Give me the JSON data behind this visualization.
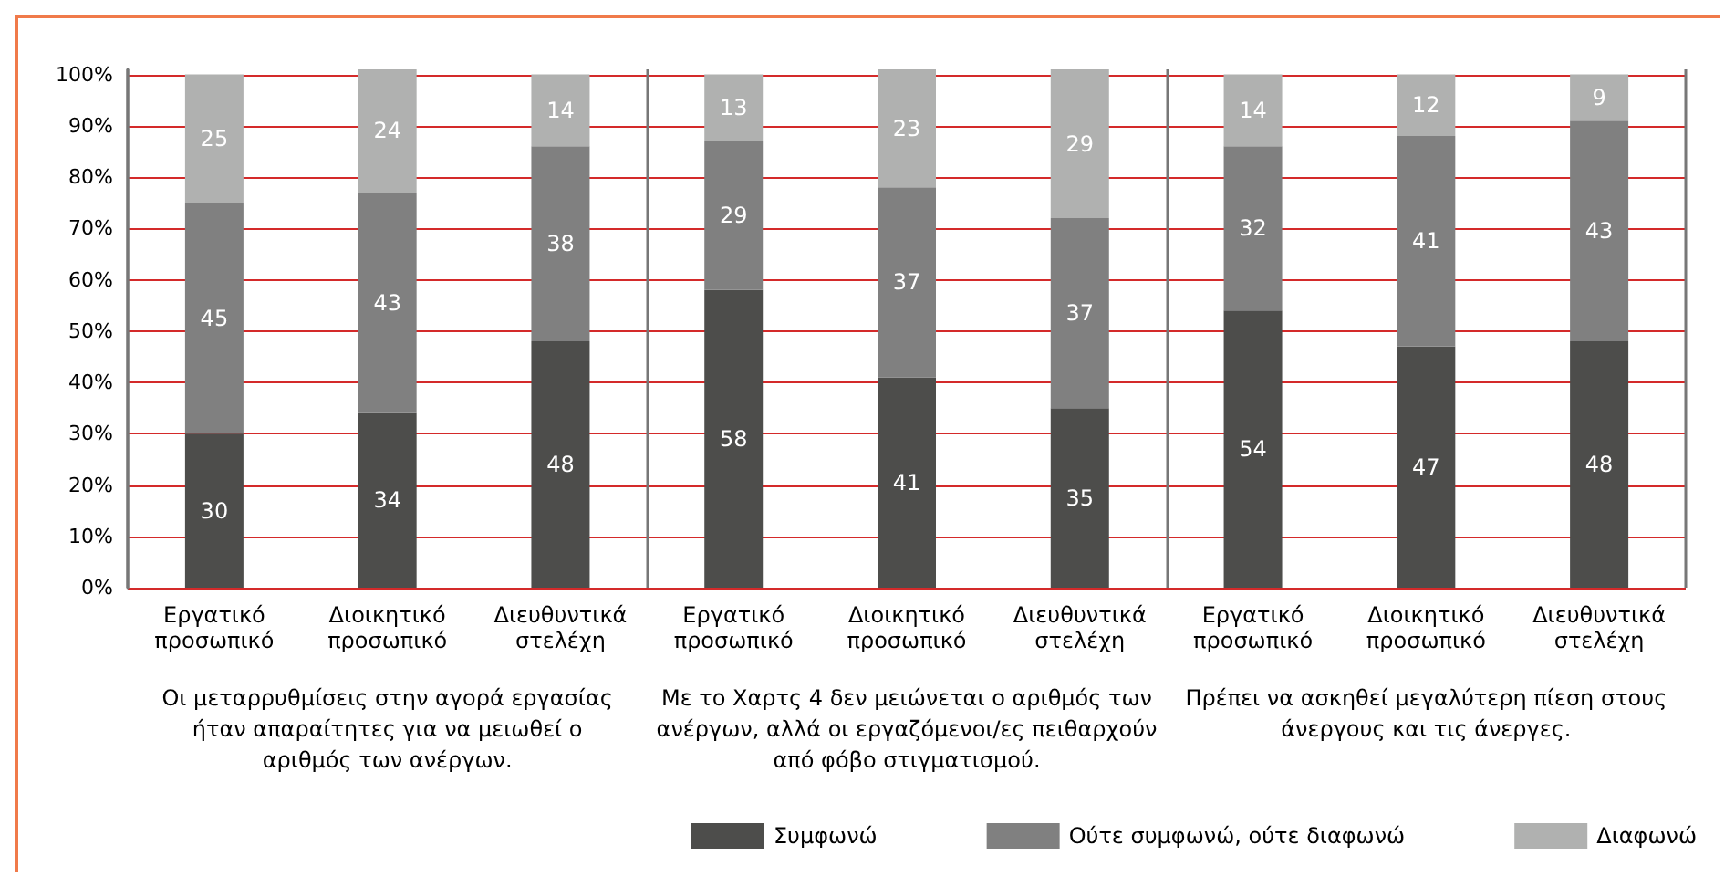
{
  "chart_data": {
    "type": "bar",
    "stacked": true,
    "data_labels": true,
    "grid": "y",
    "legend": "bottom right",
    "categories": [
      "Εργατικό\nπροσωπικό",
      "Διοικητικό\nπροσωπικό",
      "Διευθυντικά\nστελέχη",
      "Εργατικό\nπροσωπικό",
      "Διοικητικό\nπροσωπικό",
      "Διευθυντικά\nστελέχη",
      "Εργατικό\nπροσωπικό",
      "Διοικητικό\nπροσωπικό",
      "Διευθυντικά\nστελέχη"
    ],
    "series": [
      {
        "name": "Συμφωνώ",
        "color": "#4d4d4b",
        "values": [
          30,
          34,
          48,
          58,
          41,
          35,
          54,
          47,
          48
        ]
      },
      {
        "name": "Ούτε συμφωνώ, ούτε διαφωνώ",
        "color": "#808080",
        "values": [
          45,
          43,
          38,
          29,
          37,
          37,
          32,
          41,
          43
        ]
      },
      {
        "name": "Διαφωνώ",
        "color": "#b0b1b0",
        "values": [
          25,
          24,
          14,
          13,
          23,
          29,
          14,
          12,
          9
        ]
      }
    ],
    "ylim": [
      0,
      101
    ],
    "yticks": [
      {
        "value": 0,
        "label": "0%"
      },
      {
        "value": 10,
        "label": "10%"
      },
      {
        "value": 20,
        "label": "20%"
      },
      {
        "value": 30,
        "label": "30%"
      },
      {
        "value": 40,
        "label": "40%"
      },
      {
        "value": 50,
        "label": "50%"
      },
      {
        "value": 60,
        "label": "60%"
      },
      {
        "value": 70,
        "label": "70%"
      },
      {
        "value": 80,
        "label": "80%"
      },
      {
        "value": 90,
        "label": "90%"
      },
      {
        "value": 100,
        "label": "100%"
      }
    ],
    "annotations": [
      "Οι μεταρρυθμίσεις στην αγορά εργασίας\nήταν απαραίτητες για να μειωθεί ο\nαριθμός των ανέργων.",
      "Με το Χαρτς 4 δεν μειώνεται ο αριθμός των\nανέργων, αλλά οι εργαζόμενοι/ες πειθαρχούν\nαπό φόβο στιγματισμού.",
      "Πρέπει να ασκηθεί μεγαλύτερη πίεση στους\nάνεργους και τις άνεργες."
    ]
  }
}
